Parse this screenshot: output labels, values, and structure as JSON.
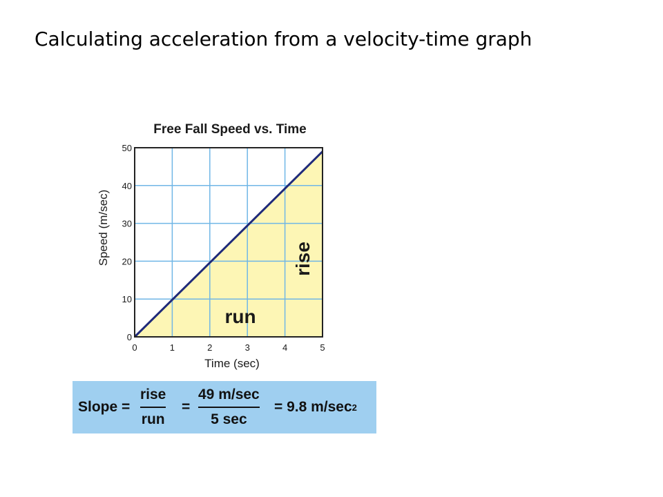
{
  "slide_title": "Calculating acceleration from a velocity-time graph",
  "chart_data": {
    "type": "line",
    "title": "Free Fall Speed vs. Time",
    "xlabel": "Time (sec)",
    "ylabel": "Speed (m/sec)",
    "x": [
      0,
      5
    ],
    "series": [
      {
        "values": [
          0,
          49
        ]
      }
    ],
    "xlim": [
      0,
      5
    ],
    "ylim": [
      0,
      50
    ],
    "xticks": [
      0,
      1,
      2,
      3,
      4,
      5
    ],
    "yticks": [
      0,
      10,
      20,
      30,
      40,
      50
    ],
    "grid": true,
    "annotations": {
      "run": "run",
      "rise": "rise"
    },
    "colors": {
      "line": "#1f2a7a",
      "fill": "#fdf6b5",
      "grid": "#6fb6e6",
      "panel": "#ffffff"
    }
  },
  "equation": {
    "lhs": "Slope =",
    "frac1_num": "rise",
    "frac1_den": "run",
    "eq1": "=",
    "frac2_num": "49 m/sec",
    "frac2_den": "5 sec",
    "result": "= 9.8 m/sec",
    "result_exp": "2",
    "box_color": "#9fcff0"
  }
}
